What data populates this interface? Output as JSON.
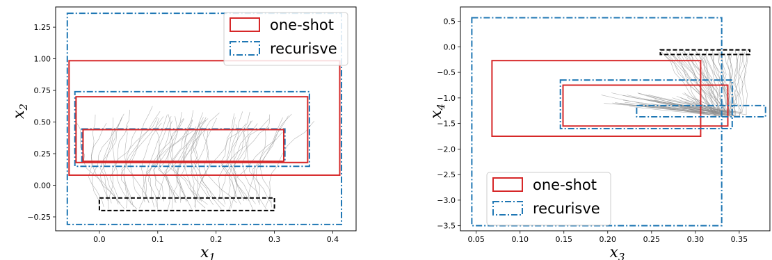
{
  "colors": {
    "one_shot": "#d62728",
    "recursive": "#1f77b4",
    "initial_set": "#000000",
    "trajectories": "#8c8c8c"
  },
  "chart_data": [
    {
      "type": "line",
      "title": "",
      "xlabel": "x",
      "xlabel_sub": "1",
      "ylabel": "x",
      "ylabel_sub": "2",
      "xlim": [
        -0.075,
        0.44
      ],
      "ylim": [
        -0.36,
        1.41
      ],
      "xticks": [
        0.0,
        0.1,
        0.2,
        0.3,
        0.4
      ],
      "xtick_labels": [
        "0.0",
        "0.1",
        "0.2",
        "0.3",
        "0.4"
      ],
      "yticks": [
        -0.25,
        0.0,
        0.25,
        0.5,
        0.75,
        1.0,
        1.25
      ],
      "ytick_labels": [
        "−0.25",
        "0.00",
        "0.25",
        "0.50",
        "0.75",
        "1.00",
        "1.25"
      ],
      "legend": {
        "placement": "upper right",
        "entries": [
          {
            "label": "one-shot",
            "style": "solid",
            "color_key": "one_shot"
          },
          {
            "label": "recurisve",
            "style": "dashdot",
            "color_key": "recursive"
          }
        ]
      },
      "initial_set": {
        "x": [
          0.0,
          0.3
        ],
        "y": [
          -0.2,
          -0.1
        ]
      },
      "boxes": [
        {
          "kind": "recursive",
          "x": [
            -0.055,
            0.415
          ],
          "y": [
            -0.31,
            1.36
          ]
        },
        {
          "kind": "one_shot",
          "x": [
            -0.052,
            0.412
          ],
          "y": [
            0.08,
            0.985
          ]
        },
        {
          "kind": "recursive",
          "x": [
            -0.042,
            0.36
          ],
          "y": [
            0.15,
            0.74
          ]
        },
        {
          "kind": "one_shot",
          "x": [
            -0.04,
            0.357
          ],
          "y": [
            0.18,
            0.7
          ]
        },
        {
          "kind": "recursive",
          "x": [
            -0.03,
            0.318
          ],
          "y": [
            0.19,
            0.445
          ]
        },
        {
          "kind": "one_shot",
          "x": [
            -0.028,
            0.316
          ],
          "y": [
            0.19,
            0.44
          ]
        }
      ],
      "trajectories": {
        "count": 60,
        "x0_range": [
          0.0,
          0.3
        ],
        "y0_range": [
          -0.2,
          -0.1
        ]
      }
    },
    {
      "type": "line",
      "title": "",
      "xlabel": "x",
      "xlabel_sub": "3",
      "ylabel": "x",
      "ylabel_sub": "4",
      "xlim": [
        0.032,
        0.385
      ],
      "ylim": [
        -3.6,
        0.78
      ],
      "xticks": [
        0.05,
        0.1,
        0.15,
        0.2,
        0.25,
        0.3,
        0.35
      ],
      "xtick_labels": [
        "0.05",
        "0.10",
        "0.15",
        "0.20",
        "0.25",
        "0.30",
        "0.35"
      ],
      "yticks": [
        -3.5,
        -3.0,
        -2.5,
        -2.0,
        -1.5,
        -1.0,
        -0.5,
        0.0,
        0.5
      ],
      "ytick_labels": [
        "−3.5",
        "−3.0",
        "−2.5",
        "−2.0",
        "−1.5",
        "−1.0",
        "−0.5",
        "0.0",
        "0.5"
      ],
      "legend": {
        "placement": "lower left",
        "entries": [
          {
            "label": "one-shot",
            "style": "solid",
            "color_key": "one_shot"
          },
          {
            "label": "recurisve",
            "style": "dashdot",
            "color_key": "recursive"
          }
        ]
      },
      "initial_set": {
        "x": [
          0.26,
          0.362
        ],
        "y": [
          -0.15,
          -0.06
        ]
      },
      "boxes": [
        {
          "kind": "recursive",
          "x": [
            0.045,
            0.33
          ],
          "y": [
            -3.5,
            0.57
          ]
        },
        {
          "kind": "one_shot",
          "x": [
            0.068,
            0.306
          ],
          "y": [
            -1.75,
            -0.27
          ]
        },
        {
          "kind": "recursive",
          "x": [
            0.146,
            0.342
          ],
          "y": [
            -1.6,
            -0.65
          ]
        },
        {
          "kind": "one_shot",
          "x": [
            0.149,
            0.337
          ],
          "y": [
            -1.55,
            -0.75
          ]
        },
        {
          "kind": "recursive",
          "x": [
            0.233,
            0.38
          ],
          "y": [
            -1.37,
            -1.15
          ]
        }
      ],
      "trajectories": {
        "count": 45,
        "x0_range": [
          0.26,
          0.362
        ],
        "y0_range": [
          -0.15,
          -0.06
        ]
      }
    }
  ]
}
